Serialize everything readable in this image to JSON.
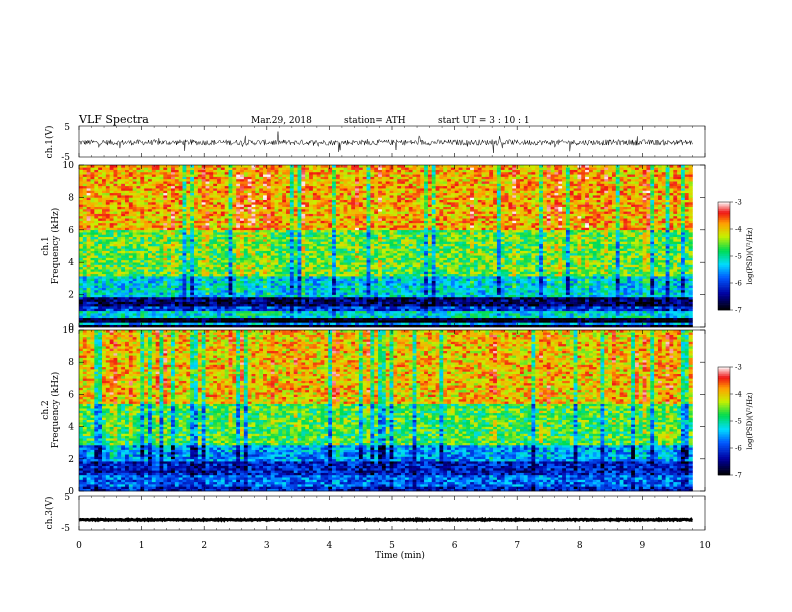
{
  "header": {
    "title": "VLF  Spectra",
    "date": "Mar.29, 2018",
    "station": "station= ATH",
    "start": "start  UT  =    3  : 10 : 1"
  },
  "chart_data": [
    {
      "type": "line",
      "name": "ch1-waveform",
      "ylabel": "ch.1(V)",
      "ylim": [
        -5,
        5
      ],
      "yticks": [
        "5",
        "-5"
      ],
      "xlim": [
        0,
        10
      ],
      "x_end": 9.8,
      "level": -0.3,
      "noise": 0.9
    },
    {
      "type": "heatmap",
      "name": "ch1-spectrogram",
      "ylabel": "ch.1\nFrequency (kHz)",
      "ylim": [
        0,
        10
      ],
      "yticks": [
        "0",
        "2",
        "4",
        "6",
        "8",
        "10"
      ],
      "xlim": [
        0,
        10
      ],
      "x_end": 9.8,
      "colorbar": {
        "label": "log(PSD)(V²/Hz)",
        "ticks": [
          "-3",
          "-4",
          "-5",
          "-6",
          "-7"
        ],
        "range": [
          -7,
          -3
        ]
      },
      "bands": [
        {
          "from": 0.0,
          "to": 0.2,
          "level": -7
        },
        {
          "from": 0.2,
          "to": 0.35,
          "level": -5.5
        },
        {
          "from": 0.35,
          "to": 0.6,
          "level": -7
        },
        {
          "from": 0.6,
          "to": 1.0,
          "level": -5.2
        },
        {
          "from": 1.0,
          "to": 1.3,
          "level": -6.0
        },
        {
          "from": 1.3,
          "to": 1.8,
          "level": -6.6
        },
        {
          "from": 1.8,
          "to": 3.2,
          "level": -5.3
        },
        {
          "from": 3.2,
          "to": 6.0,
          "level": -4.6
        },
        {
          "from": 6.0,
          "to": 10.0,
          "level": -3.9
        }
      ]
    },
    {
      "type": "heatmap",
      "name": "ch2-spectrogram",
      "ylabel": "ch.2\nFrequency (kHz)",
      "ylim": [
        0,
        10
      ],
      "yticks": [
        "0",
        "2",
        "4",
        "6",
        "8",
        "10"
      ],
      "xlim": [
        0,
        10
      ],
      "x_end": 9.8,
      "colorbar": {
        "label": "log(PSD)(V²/Hz)",
        "ticks": [
          "-3",
          "-4",
          "-5",
          "-6",
          "-7"
        ],
        "range": [
          -7,
          -3
        ]
      },
      "bands": [
        {
          "from": 0.0,
          "to": 0.3,
          "level": -6.2
        },
        {
          "from": 0.3,
          "to": 1.0,
          "level": -5.8
        },
        {
          "from": 1.0,
          "to": 1.8,
          "level": -6.2
        },
        {
          "from": 1.8,
          "to": 2.8,
          "level": -5.6
        },
        {
          "from": 2.8,
          "to": 5.5,
          "level": -4.7
        },
        {
          "from": 5.5,
          "to": 10.0,
          "level": -4.0
        }
      ]
    },
    {
      "type": "line",
      "name": "ch3-waveform",
      "ylabel": "ch.3(V)",
      "ylim": [
        -5,
        5
      ],
      "yticks": [
        "5",
        "-5"
      ],
      "xlim": [
        0,
        10
      ],
      "x_end": 9.8,
      "level": -2.0,
      "noise": 0.15,
      "xlabel": "Time  (min)",
      "xticks": [
        "0",
        "1",
        "2",
        "3",
        "4",
        "5",
        "6",
        "7",
        "8",
        "9",
        "10"
      ]
    }
  ]
}
